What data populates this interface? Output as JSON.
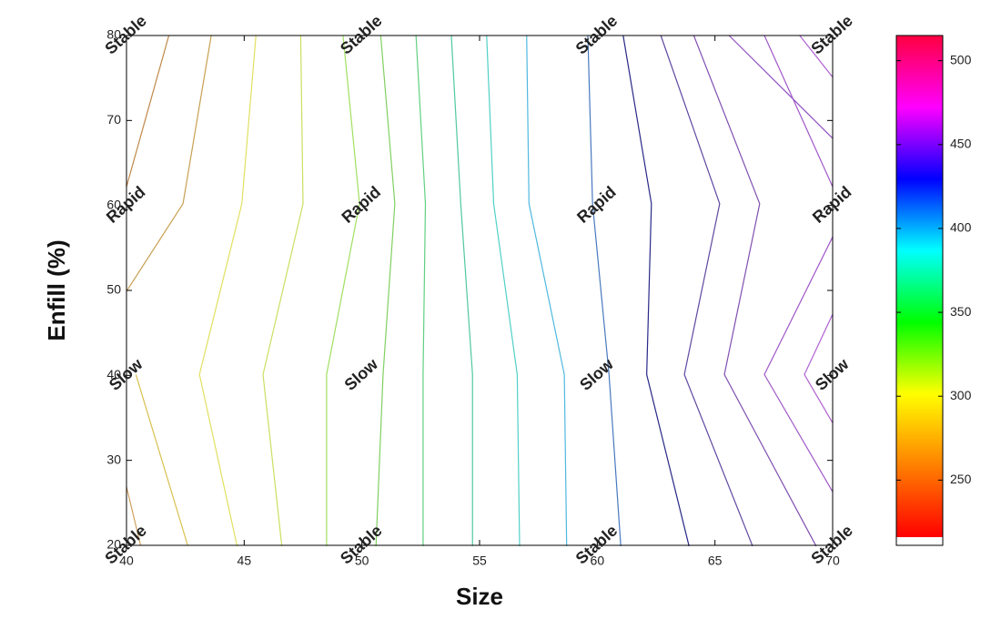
{
  "chart_data": {
    "type": "contour",
    "x_label": "Size",
    "y_label": "Enfill (%)",
    "xlim": [
      40,
      70
    ],
    "xticks": [
      40,
      45,
      50,
      55,
      60,
      65,
      70
    ],
    "ylim": [
      20,
      80
    ],
    "yticks": [
      20,
      30,
      40,
      50,
      60,
      70,
      80
    ],
    "zlim": [
      216,
      515
    ],
    "zticks": [
      250,
      300,
      350,
      400,
      450,
      500
    ],
    "colormap": [
      "#ff0000",
      "#ff8000",
      "#ffff00",
      "#00ff00",
      "#00ffff",
      "#0000ff",
      "#ff00ff",
      "#ff0040"
    ],
    "contours": [
      {
        "color": "#c08848",
        "x": [
          41.8,
          40
        ],
        "y": [
          80,
          62.2
        ]
      },
      {
        "color": "#c8a050",
        "x": [
          43.6,
          42.4,
          40
        ],
        "y": [
          80,
          60.2,
          49.9
        ]
      },
      {
        "color": "#d0a060",
        "x": [
          40,
          40.6
        ],
        "y": [
          26.9,
          20
        ]
      },
      {
        "color": "#d8c050",
        "x": [
          40.4,
          42.6
        ],
        "y": [
          40.1,
          20
        ]
      },
      {
        "color": "#e0e060",
        "x": [
          45.5,
          44.9,
          43.1,
          44.7
        ],
        "y": [
          80,
          60.2,
          40.1,
          19.9
        ]
      },
      {
        "color": "#c8e060",
        "x": [
          47.4,
          47.5,
          45.8,
          46.6
        ],
        "y": [
          80,
          60.2,
          40.1,
          19.9
        ]
      },
      {
        "color": "#a0e060",
        "x": [
          49.2,
          49.9,
          48.5,
          48.5
        ],
        "y": [
          80,
          60.2,
          40.1,
          19.9
        ]
      },
      {
        "color": "#80d060",
        "x": [
          50.8,
          51.4,
          50.9,
          50.6
        ],
        "y": [
          80,
          60.2,
          40.1,
          19.9
        ]
      },
      {
        "color": "#60d080",
        "x": [
          52.3,
          52.7,
          52.6,
          52.6
        ],
        "y": [
          80,
          60.2,
          40.1,
          19.9
        ]
      },
      {
        "color": "#50c8a0",
        "x": [
          53.8,
          54.2,
          54.7,
          54.7
        ],
        "y": [
          80,
          60.2,
          40.1,
          19.9
        ]
      },
      {
        "color": "#50d0c8",
        "x": [
          55.3,
          55.6,
          56.6,
          56.7
        ],
        "y": [
          80,
          60.2,
          40.1,
          19.9
        ]
      },
      {
        "color": "#50b8e0",
        "x": [
          57.0,
          57.1,
          58.6,
          58.7
        ],
        "y": [
          80,
          60.2,
          40.1,
          19.9
        ]
      },
      {
        "color": "#4878c0",
        "x": [
          59.6,
          59.8,
          60.5,
          61.0
        ],
        "y": [
          80,
          60.2,
          40.1,
          19.9
        ]
      },
      {
        "color": "#282888",
        "x": [
          61.1,
          62.3,
          62.1,
          63.9
        ],
        "y": [
          80,
          60.2,
          40.1,
          19.9
        ]
      },
      {
        "color": "#6048a0",
        "x": [
          62.7,
          65.2,
          63.7,
          66.6
        ],
        "y": [
          80,
          60.2,
          40.1,
          19.9
        ]
      },
      {
        "color": "#8050b0",
        "x": [
          64.1,
          66.9,
          65.4,
          69.3
        ],
        "y": [
          80,
          60.2,
          40.1,
          19.9
        ]
      },
      {
        "color": "#9050c0",
        "x": [
          65.6,
          70
        ],
        "y": [
          80,
          67.9
        ]
      },
      {
        "color": "#a058c8",
        "x": [
          67.1,
          70
        ],
        "y": [
          80,
          62.2
        ]
      },
      {
        "color": "#b060d0",
        "x": [
          68.6,
          70
        ],
        "y": [
          80,
          75.1
        ]
      },
      {
        "color": "#a058c8",
        "x": [
          70,
          67.1,
          70
        ],
        "y": [
          56.3,
          40.1,
          26.3
        ]
      },
      {
        "color": "#b060d0",
        "x": [
          70,
          68.8,
          70
        ],
        "y": [
          47.2,
          40.1,
          34.4
        ]
      }
    ],
    "annotations": [
      {
        "text": "Stable",
        "x": 40,
        "y": 80,
        "color": "#1010e0"
      },
      {
        "text": "Stable",
        "x": 50,
        "y": 80,
        "color": "#1010e0"
      },
      {
        "text": "Stable",
        "x": 60,
        "y": 80,
        "color": "#1010e0"
      },
      {
        "text": "Stable",
        "x": 70,
        "y": 80,
        "color": "#1010e0"
      },
      {
        "text": "Rapid",
        "x": 40,
        "y": 60,
        "color": "#ee1010"
      },
      {
        "text": "Rapid",
        "x": 50,
        "y": 60,
        "color": "#ee1010"
      },
      {
        "text": "Rapid",
        "x": 60,
        "y": 60,
        "color": "#ee1010"
      },
      {
        "text": "Rapid",
        "x": 70,
        "y": 60,
        "color": "#ee1010"
      },
      {
        "text": "Slow",
        "x": 40,
        "y": 40,
        "color": "#20c8f0"
      },
      {
        "text": "Slow",
        "x": 50,
        "y": 40,
        "color": "#20c8f0"
      },
      {
        "text": "Slow",
        "x": 60,
        "y": 40,
        "color": "#20c8f0"
      },
      {
        "text": "Slow",
        "x": 70,
        "y": 40,
        "color": "#20c8f0"
      },
      {
        "text": "Stable",
        "x": 40,
        "y": 20,
        "color": "#1010e0"
      },
      {
        "text": "Stable",
        "x": 50,
        "y": 20,
        "color": "#1010e0"
      },
      {
        "text": "Stable",
        "x": 60,
        "y": 20,
        "color": "#1010e0"
      },
      {
        "text": "Stable",
        "x": 70,
        "y": 20,
        "color": "#1010e0"
      }
    ]
  }
}
